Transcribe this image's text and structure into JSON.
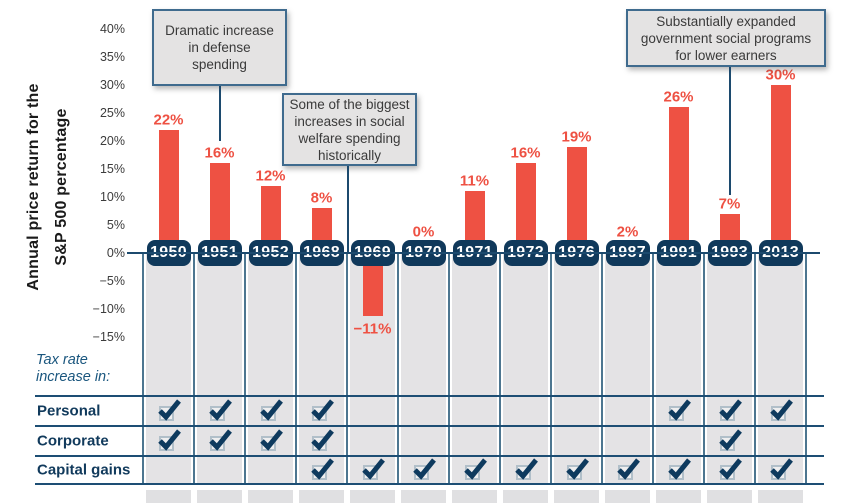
{
  "chart_data": {
    "type": "bar",
    "title": "",
    "ylabel": "Annual price return for the S&P 500 percentage",
    "ylabel_text": "Annual price return for the\nS&P 500 percentage",
    "categories": [
      "1950",
      "1951",
      "1952",
      "1968",
      "1969",
      "1970",
      "1971",
      "1972",
      "1976",
      "1987",
      "1991",
      "1993",
      "2013"
    ],
    "values": [
      22,
      16,
      12,
      8,
      -11,
      0,
      11,
      16,
      19,
      2,
      26,
      7,
      30
    ],
    "value_labels": [
      "22%",
      "16%",
      "12%",
      "8%",
      "−11%",
      "0%",
      "11%",
      "16%",
      "19%",
      "2%",
      "26%",
      "7%",
      "30%"
    ],
    "y_ticks": [
      "40%",
      "35%",
      "30%",
      "25%",
      "20%",
      "15%",
      "10%",
      "5%",
      "0%",
      "−5%",
      "−10%",
      "−15%"
    ],
    "y_tick_values": [
      40,
      35,
      30,
      25,
      20,
      15,
      10,
      5,
      0,
      -5,
      -10,
      -15
    ],
    "ylim": [
      -15,
      40
    ],
    "grid": "off",
    "annotations": [
      {
        "text": "Dramatic increase\nin defense\nspending",
        "points_to": "1951"
      },
      {
        "text": "Some of the biggest\nincreases in social\nwelfare spending\nhistorically",
        "points_to": "1969"
      },
      {
        "text": "Substantially expanded\ngovernment social programs\nfor lower earners",
        "points_to": "1993"
      }
    ]
  },
  "callouts": [
    {
      "text": "Dramatic increase\nin defense\nspending"
    },
    {
      "text": "Some of the biggest\nincreases in social\nwelfare spending\nhistorically"
    },
    {
      "text": "Substantially expanded\ngovernment social programs\nfor lower earners"
    }
  ],
  "table": {
    "caption": "Tax rate increase in:",
    "caption_text": "Tax rate\nincrease in:",
    "columns": [
      "1950",
      "1951",
      "1952",
      "1968",
      "1969",
      "1970",
      "1971",
      "1972",
      "1976",
      "1987",
      "1991",
      "1993",
      "2013"
    ],
    "rows": [
      {
        "label": "Personal",
        "checks": [
          1,
          1,
          1,
          1,
          0,
          0,
          0,
          0,
          0,
          0,
          1,
          1,
          1
        ]
      },
      {
        "label": "Corporate",
        "checks": [
          1,
          1,
          1,
          1,
          0,
          0,
          0,
          0,
          0,
          0,
          0,
          1,
          0
        ]
      },
      {
        "label": "Capital gains",
        "checks": [
          0,
          0,
          0,
          1,
          1,
          1,
          1,
          1,
          1,
          1,
          1,
          1,
          1
        ]
      }
    ],
    "check_icon": "checked-checkbox"
  },
  "colors": {
    "bar": "#ee5143",
    "bar_label": "#ee5143",
    "pill_bg": "#10395b",
    "pill_text": "#ffffff",
    "axis_line": "#1c4a6e",
    "grid_vline": "#4d7690",
    "table_line": "#1d4e74",
    "strip_bg": "#e4e3e5",
    "callout_bg": "#e4e3e3",
    "callout_border": "#3f6b8e",
    "check": "#0e3a5e",
    "blue_text": "#1a567e"
  }
}
